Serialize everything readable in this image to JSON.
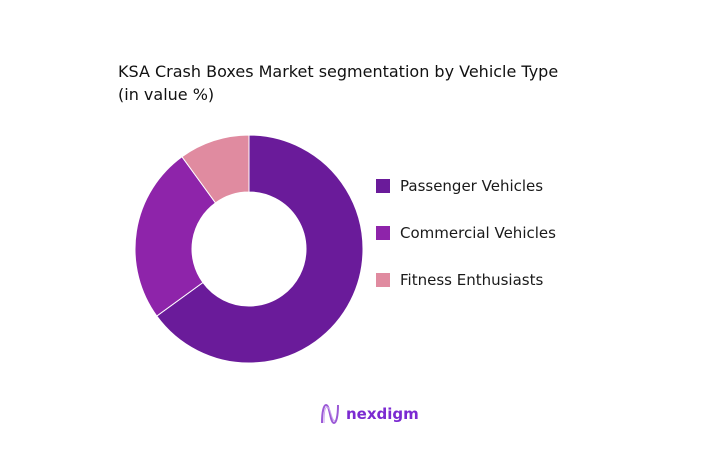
{
  "chart_data": {
    "type": "pie",
    "donut": true,
    "title": "KSA Crash Boxes Market segmentation by Vehicle Type",
    "subtitle": "(in value %)",
    "categories": [
      "Passenger Vehicles",
      "Commercial Vehicles",
      "Fitness Enthusiasts"
    ],
    "values": [
      65,
      25,
      10
    ],
    "colors": [
      "#6a1b9a",
      "#8e24aa",
      "#e08ba0"
    ],
    "legend_position": "right"
  },
  "logo": {
    "text": "nexdigm"
  }
}
